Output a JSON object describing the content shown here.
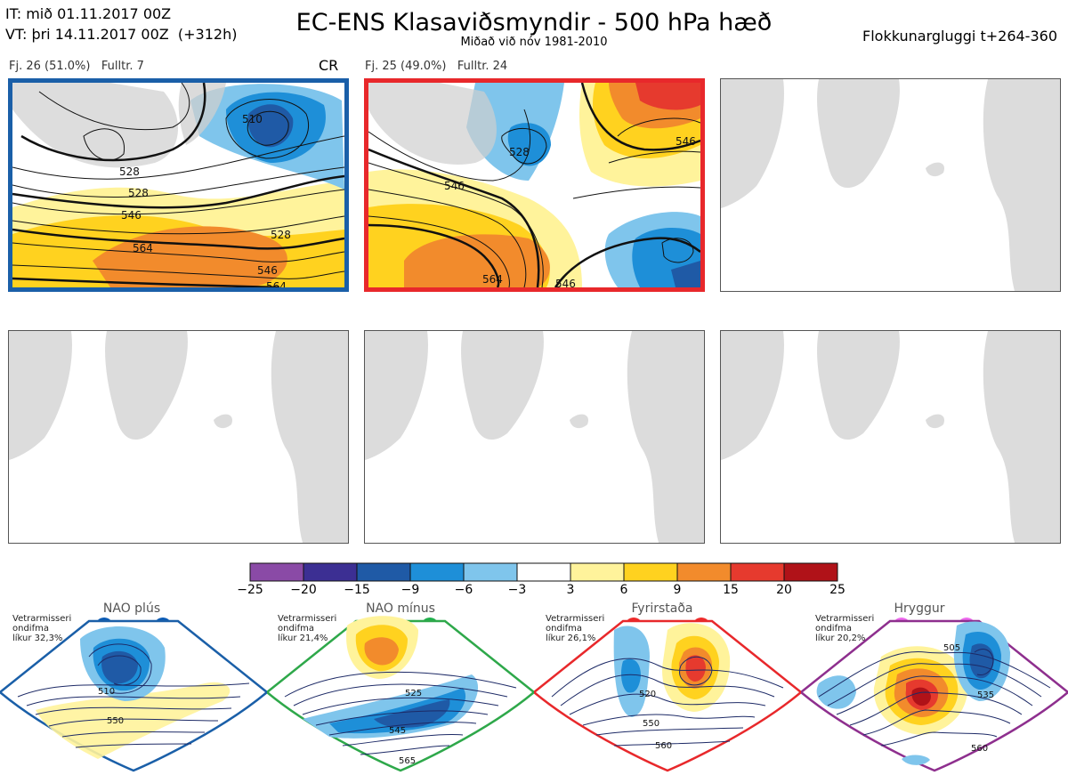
{
  "header": {
    "init_time": "IT: mið 01.11.2017 00Z",
    "valid_time": "VT: þri 14.11.2017 00Z",
    "lead": "(+312h)",
    "title": "EC-ENS Klasaviðsmyndir - 500 hPa hæð",
    "subtitle": "Miðað við nóv 1981-2010",
    "window": "Flokkunargluggi t+264-360"
  },
  "clusters": [
    {
      "caption": "Fj. 26 (51.0%)",
      "representative": "Fulltr. 7",
      "tag": "CR",
      "border_color": "#1a5fa8",
      "contour_labels": [
        "510",
        "528",
        "546",
        "564",
        "528",
        "546",
        "564",
        "528"
      ]
    },
    {
      "caption": "Fj. 25 (49.0%)",
      "representative": "Fulltr. 24",
      "tag": "",
      "border_color": "#e8282b",
      "contour_labels": [
        "528",
        "546",
        "564",
        "546",
        "546"
      ]
    }
  ],
  "colorbar": {
    "labels": [
      "−25",
      "−20",
      "−15",
      "−9",
      "−6",
      "−3",
      "3",
      "6",
      "9",
      "15",
      "20",
      "25"
    ],
    "colors": [
      "#8a4aa6",
      "#3c2f93",
      "#1f5aa6",
      "#1e8fd8",
      "#7fc5ec",
      "#ffffff",
      "#fff39b",
      "#ffd21f",
      "#f28b2c",
      "#e63a2e",
      "#b01218"
    ]
  },
  "regimes": [
    {
      "name": "NAO plús",
      "note": [
        "Vetrarmisseri",
        "ondifma",
        "líkur 32,3%"
      ],
      "color": "#1a5fa8",
      "dot": "#0b5bb5",
      "contour_labels": [
        "510",
        "550"
      ]
    },
    {
      "name": "NAO mínus",
      "note": [
        "Vetrarmisseri",
        "ondifma",
        "líkur 21,4%"
      ],
      "color": "#2ea84a",
      "dot": "#1fb04c",
      "contour_labels": [
        "525",
        "545",
        "565"
      ]
    },
    {
      "name": "Fyrirstaða",
      "note": [
        "Vetrarmisseri",
        "ondifma",
        "líkur 26,1%"
      ],
      "color": "#e8282b",
      "dot": "#ee2a2a",
      "contour_labels": [
        "520",
        "550",
        "560"
      ]
    },
    {
      "name": "Hryggur",
      "note": [
        "Vetrarmisseri",
        "ondifma",
        "líkur 20,2%"
      ],
      "color": "#8e2f8e",
      "dot": "#ee6aee",
      "contour_labels": [
        "505",
        "535",
        "560"
      ]
    }
  ]
}
